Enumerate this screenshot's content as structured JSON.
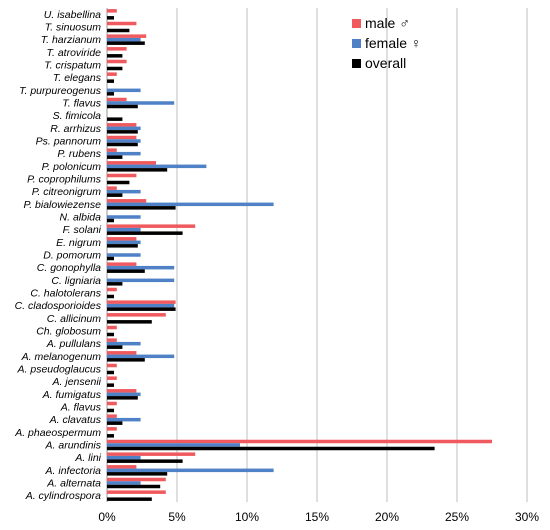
{
  "chart_data": {
    "type": "bar",
    "orientation": "horizontal",
    "categories": [
      "U. isabellina",
      "T. sinuosum",
      "T. harzianum",
      "T. atroviride",
      "T. crispatum",
      "T. elegans",
      "T. purpureogenus",
      "T. flavus",
      "S. fimicola",
      "R. arrhizus",
      "Ps. pannorum",
      "P. rubens",
      "P. polonicum",
      "P. coprophilums",
      "P. citreonigrum",
      "P. bialowiezense",
      "N. albida",
      "F. solani",
      "E. nigrum",
      "D. pomorum",
      "C. gonophylla",
      "C. ligniaria",
      "C. halotolerans",
      "C. cladosporioides",
      "C. allicinum",
      "Ch. globosum",
      "A. pullulans",
      "A. melanogenum",
      "A. pseudoglaucus",
      "A. jensenii",
      "A. fumigatus",
      "A. flavus",
      "A. clavatus",
      "A. phaeospermum",
      "A. arundinis",
      "A. lini",
      "A. infectoria",
      "A. alternata",
      "A. cylindrospora"
    ],
    "series": [
      {
        "name": "male ♂",
        "color": "#f0595d",
        "values": [
          0.7,
          2.1,
          2.8,
          1.4,
          1.4,
          0.7,
          0,
          1.4,
          0,
          2.1,
          2.1,
          0.7,
          3.5,
          2.1,
          0.7,
          2.8,
          0,
          6.3,
          2.1,
          0,
          2.1,
          0,
          0.7,
          4.9,
          4.2,
          0.7,
          0.7,
          2.1,
          0.7,
          0.7,
          2.1,
          0.7,
          0.7,
          0.7,
          27.5,
          6.3,
          2.1,
          4.2,
          4.2
        ]
      },
      {
        "name": "female ♀",
        "color": "#4f81c7",
        "values": [
          0,
          0,
          2.4,
          0,
          0,
          0,
          2.4,
          4.8,
          0,
          2.4,
          2.4,
          2.4,
          7.1,
          0,
          2.4,
          11.9,
          2.4,
          2.4,
          2.4,
          2.4,
          4.8,
          4.8,
          0,
          4.8,
          0,
          0,
          2.4,
          4.8,
          0,
          0,
          2.4,
          0,
          2.4,
          0,
          9.5,
          2.4,
          11.9,
          2.4,
          0
        ]
      },
      {
        "name": "overall",
        "color": "#000000",
        "values": [
          0.5,
          1.6,
          2.7,
          1.1,
          1.1,
          0.5,
          0.5,
          2.2,
          1.1,
          2.2,
          2.2,
          1.1,
          4.3,
          1.6,
          1.1,
          4.9,
          0.5,
          5.4,
          2.2,
          0.5,
          2.7,
          1.1,
          0.5,
          4.9,
          3.2,
          0.5,
          1.1,
          2.7,
          0.5,
          0.5,
          2.2,
          0.5,
          1.1,
          0.5,
          23.4,
          5.4,
          4.3,
          3.8,
          3.2
        ]
      }
    ],
    "xlim": [
      0,
      30
    ],
    "xticks": [
      "0%",
      "5%",
      "10%",
      "15%",
      "20%",
      "25%",
      "30%"
    ],
    "grid": true,
    "legend_position": "top-right"
  }
}
